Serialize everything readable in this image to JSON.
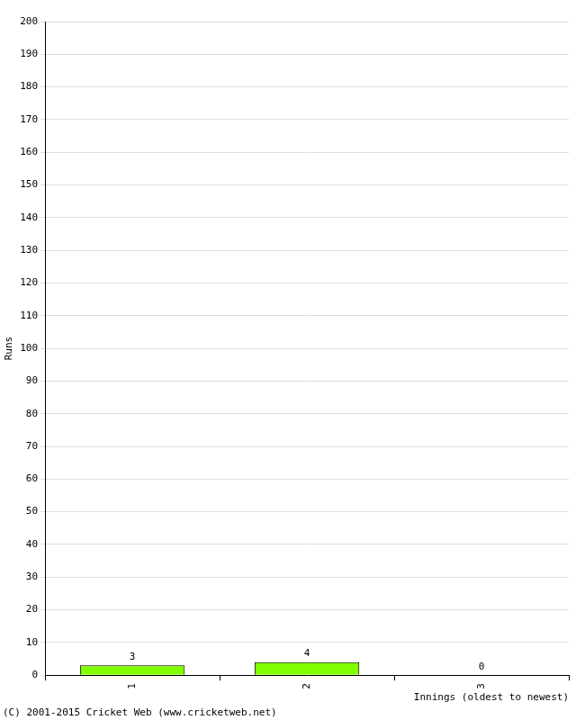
{
  "chart_data": {
    "type": "bar",
    "categories": [
      "1",
      "2",
      "3"
    ],
    "values": [
      3,
      4,
      0
    ],
    "color": "#80ff00",
    "x_label": "Innings (oldest to newest)",
    "y_label": "Runs",
    "ylim": [
      0,
      200
    ],
    "yticks": [
      0,
      10,
      20,
      30,
      40,
      50,
      60,
      70,
      80,
      90,
      100,
      110,
      120,
      130,
      140,
      150,
      160,
      170,
      180,
      190,
      200
    ],
    "grid": true,
    "data_labels": true,
    "annotations": [
      "(C) 2001-2015 Cricket Web (www.cricketweb.net)"
    ]
  }
}
